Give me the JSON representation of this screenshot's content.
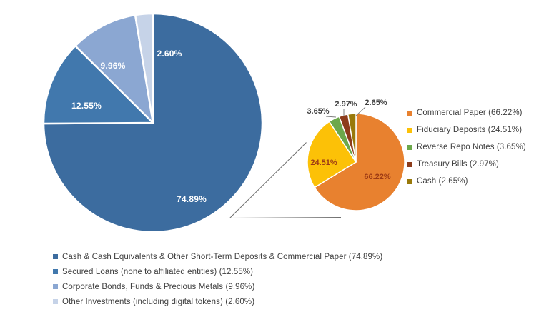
{
  "chart_data": [
    {
      "type": "pie",
      "name": "portfolio-allocation",
      "direction": "clockwise",
      "start_angle_deg": 0,
      "slice_label_color": "#ffffff",
      "legend_position": "bottom",
      "slices": [
        {
          "category": "Cash & Cash Equivalents & Other Short-Term Deposits & Commercial Paper",
          "value": 74.89,
          "label": "74.89%",
          "color": "#3c6c9f"
        },
        {
          "category": "Secured Loans (none to affiliated entities)",
          "value": 12.55,
          "label": "12.55%",
          "color": "#4178ad"
        },
        {
          "category": "Corporate Bonds, Funds & Precious Metals",
          "value": 9.96,
          "label": "9.96%",
          "color": "#8ba7d2"
        },
        {
          "category": "Other Investments (including digital tokens)",
          "value": 2.6,
          "label": "2.60%",
          "color": "#c6d3e8"
        }
      ],
      "legend": [
        {
          "text": "Cash & Cash Equivalents & Other Short-Term Deposits & Commercial Paper (74.89%)",
          "color": "#3c6c9f"
        },
        {
          "text": "Secured Loans (none to affiliated entities) (12.55%)",
          "color": "#4178ad"
        },
        {
          "text": "Corporate Bonds, Funds & Precious Metals (9.96%)",
          "color": "#8ba7d2"
        },
        {
          "text": "Other Investments (including digital tokens) (2.60%)",
          "color": "#c6d3e8"
        }
      ]
    },
    {
      "type": "pie",
      "name": "cash-equivalents-breakdown",
      "direction": "clockwise",
      "start_angle_deg": 0,
      "inside_label_color": "#9c3a14",
      "outside_label_color": "#404040",
      "legend_position": "right",
      "slices": [
        {
          "category": "Commercial Paper",
          "value": 66.22,
          "label": "66.22%",
          "color": "#e8812f"
        },
        {
          "category": "Fiduciary Deposits",
          "value": 24.51,
          "label": "24.51%",
          "color": "#fcc107"
        },
        {
          "category": "Reverse Repo Notes",
          "value": 3.65,
          "label": "3.65%",
          "color": "#6ca84b"
        },
        {
          "category": "Treasury Bills",
          "value": 2.97,
          "label": "2.97%",
          "color": "#8d3c1b"
        },
        {
          "category": "Cash",
          "value": 2.65,
          "label": "2.65%",
          "color": "#99790a"
        }
      ],
      "legend": [
        {
          "text": "Commercial Paper (66.22%)",
          "color": "#e8812f"
        },
        {
          "text": "Fiduciary Deposits (24.51%)",
          "color": "#fcc107"
        },
        {
          "text": "Reverse Repo Notes (3.65%)",
          "color": "#6ca84b"
        },
        {
          "text": "Treasury Bills (2.97%)",
          "color": "#8d3c1b"
        },
        {
          "text": "Cash (2.65%)",
          "color": "#99790a"
        }
      ]
    }
  ]
}
